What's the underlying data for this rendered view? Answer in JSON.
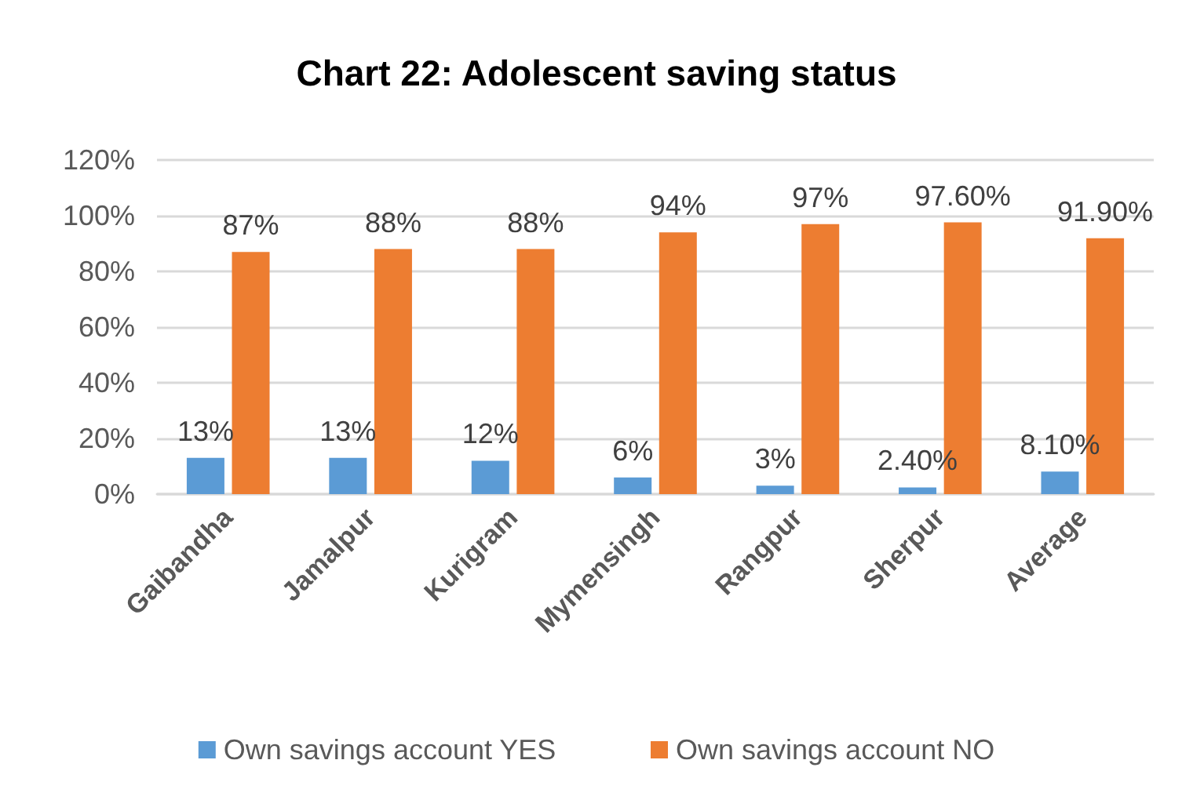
{
  "chart_data": {
    "type": "bar",
    "title": "Chart 22: Adolescent saving status",
    "categories": [
      "Gaibandha",
      "Jamalpur",
      "Kurigram",
      "Mymensingh",
      "Rangpur",
      "Sherpur",
      "Average"
    ],
    "series": [
      {
        "name": "Own savings account YES",
        "color": "#5b9bd5",
        "values": [
          13,
          13,
          12,
          6,
          3,
          2.4,
          8.1
        ],
        "value_labels": [
          "13%",
          "13%",
          "12%",
          "6%",
          "3%",
          "2.40%",
          "8.10%"
        ]
      },
      {
        "name": "Own savings account NO",
        "color": "#ed7d31",
        "values": [
          87,
          88,
          88,
          94,
          97,
          97.6,
          91.9
        ],
        "value_labels": [
          "87%",
          "88%",
          "88%",
          "94%",
          "97%",
          "97.60%",
          "91.90%"
        ]
      }
    ],
    "ylim": [
      0,
      120
    ],
    "yticks": [
      {
        "value": 0,
        "label": "0%"
      },
      {
        "value": 20,
        "label": "20%"
      },
      {
        "value": 40,
        "label": "40%"
      },
      {
        "value": 60,
        "label": "60%"
      },
      {
        "value": 80,
        "label": "80%"
      },
      {
        "value": 100,
        "label": "100%"
      },
      {
        "value": 120,
        "label": "120%"
      }
    ],
    "grid": "y",
    "legend": "bottom"
  }
}
